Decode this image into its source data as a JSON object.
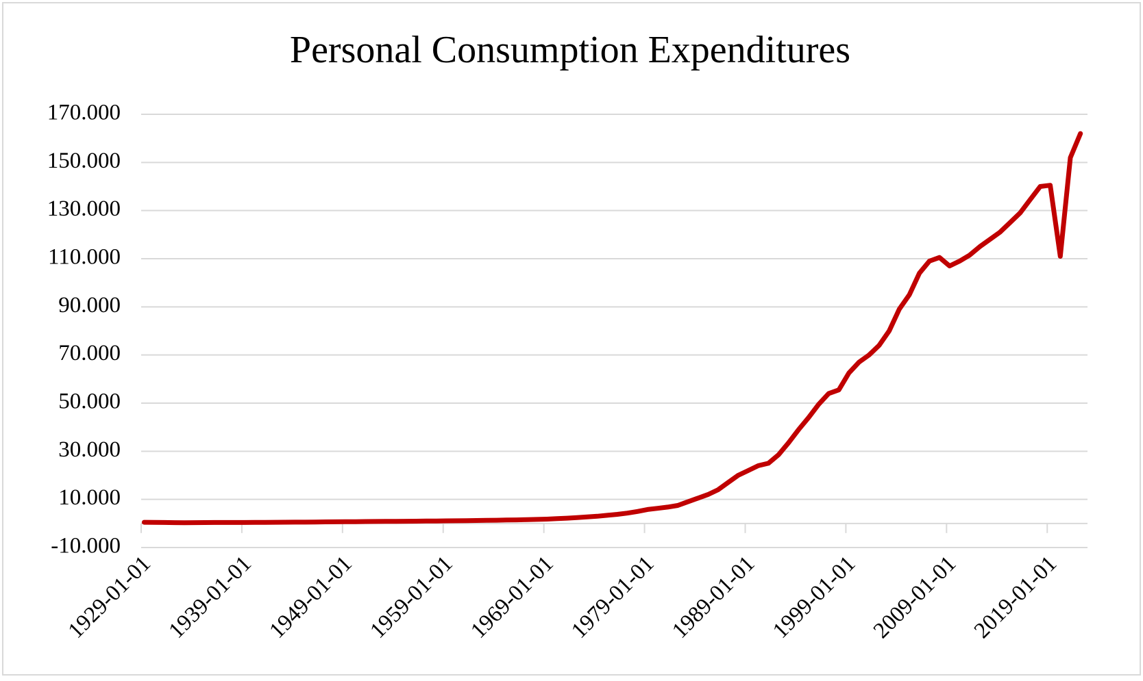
{
  "chart_data": {
    "type": "line",
    "title": "Personal Consumption Expenditures",
    "categories": [
      "1929-01-01",
      null,
      null,
      null,
      null,
      null,
      null,
      null,
      null,
      null,
      "1939-01-01",
      null,
      null,
      null,
      null,
      null,
      null,
      null,
      null,
      null,
      "1949-01-01",
      null,
      null,
      null,
      null,
      null,
      null,
      null,
      null,
      null,
      "1959-01-01",
      null,
      null,
      null,
      null,
      null,
      null,
      null,
      null,
      null,
      "1969-01-01",
      null,
      null,
      null,
      null,
      null,
      null,
      null,
      null,
      null,
      "1979-01-01",
      null,
      null,
      null,
      null,
      null,
      null,
      null,
      null,
      null,
      "1989-01-01",
      null,
      null,
      null,
      null,
      null,
      null,
      null,
      null,
      null,
      "1999-01-01",
      null,
      null,
      null,
      null,
      null,
      null,
      null,
      null,
      null,
      "2009-01-01",
      null,
      null,
      null,
      null,
      null,
      null,
      null,
      null,
      null,
      "2019-01-01",
      null,
      null,
      null
    ],
    "series": [
      {
        "color": "#c00000",
        "values": [
          500,
          450,
          400,
          350,
          330,
          350,
          380,
          400,
          420,
          400,
          420,
          430,
          470,
          500,
          520,
          540,
          560,
          600,
          650,
          700,
          720,
          760,
          800,
          830,
          860,
          880,
          920,
          960,
          1000,
          1030,
          1080,
          1120,
          1160,
          1220,
          1280,
          1350,
          1420,
          1500,
          1580,
          1700,
          1800,
          2000,
          2200,
          2450,
          2700,
          3000,
          3400,
          3800,
          4300,
          5000,
          5800,
          6300,
          6800,
          7500,
          9000,
          10500,
          12000,
          14000,
          17000,
          20000,
          22000,
          24000,
          25000,
          28500,
          33500,
          39000,
          44000,
          49500,
          54000,
          55500,
          62500,
          67000,
          70000,
          74000,
          80000,
          89000,
          95000,
          104000,
          109000,
          110500,
          107000,
          109000,
          111500,
          115000,
          118000,
          121000,
          125000,
          129000,
          134500,
          140000,
          140500,
          111000,
          152000,
          162000
        ]
      }
    ],
    "ylim": [
      -10000,
      170000
    ],
    "yticks": [
      {
        "value": -10000,
        "label": "-10.000"
      },
      {
        "value": 10000,
        "label": "10.000"
      },
      {
        "value": 30000,
        "label": "30.000"
      },
      {
        "value": 50000,
        "label": "50.000"
      },
      {
        "value": 70000,
        "label": "70.000"
      },
      {
        "value": 90000,
        "label": "90.000"
      },
      {
        "value": 110000,
        "label": "110.000"
      },
      {
        "value": 130000,
        "label": "130.000"
      },
      {
        "value": 150000,
        "label": "150.000"
      },
      {
        "value": 170000,
        "label": "170.000"
      }
    ],
    "grid": true
  }
}
